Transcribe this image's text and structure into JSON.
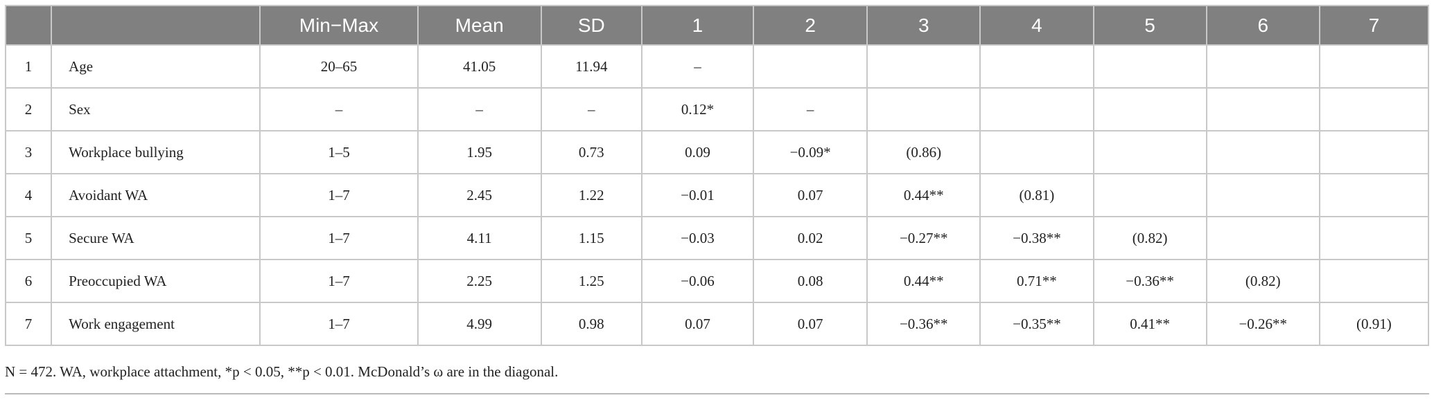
{
  "table": {
    "header": [
      "Min−Max",
      "Mean",
      "SD",
      "1",
      "2",
      "3",
      "4",
      "5",
      "6",
      "7"
    ],
    "rows": [
      [
        "1",
        "Age",
        "20–65",
        "41.05",
        "11.94",
        "–"
      ],
      [
        "2",
        "Sex",
        "–",
        "–",
        "–",
        "0.12*",
        "–"
      ],
      [
        "3",
        "Workplace bullying",
        "1–5",
        "1.95",
        "0.73",
        "0.09",
        "−0.09*",
        "(0.86)"
      ],
      [
        "4",
        "Avoidant WA",
        "1–7",
        "2.45",
        "1.22",
        "−0.01",
        "0.07",
        "0.44**",
        "(0.81)"
      ],
      [
        "5",
        "Secure WA",
        "1–7",
        "4.11",
        "1.15",
        "−0.03",
        "0.02",
        "−0.27**",
        "−0.38**",
        "(0.82)"
      ],
      [
        "6",
        "Preoccupied WA",
        "1–7",
        "2.25",
        "1.25",
        "−0.06",
        "0.08",
        "0.44**",
        "0.71**",
        "−0.36**",
        "(0.82)"
      ],
      [
        "7",
        "Work engagement",
        "1–7",
        "4.99",
        "0.98",
        "0.07",
        "0.07",
        "−0.36**",
        "−0.35**",
        "0.41**",
        "−0.26**",
        "(0.91)"
      ]
    ],
    "footnote": "N = 472. WA, workplace attachment, *p < 0.05, **p < 0.01. McDonald’s ω are in the diagonal."
  }
}
